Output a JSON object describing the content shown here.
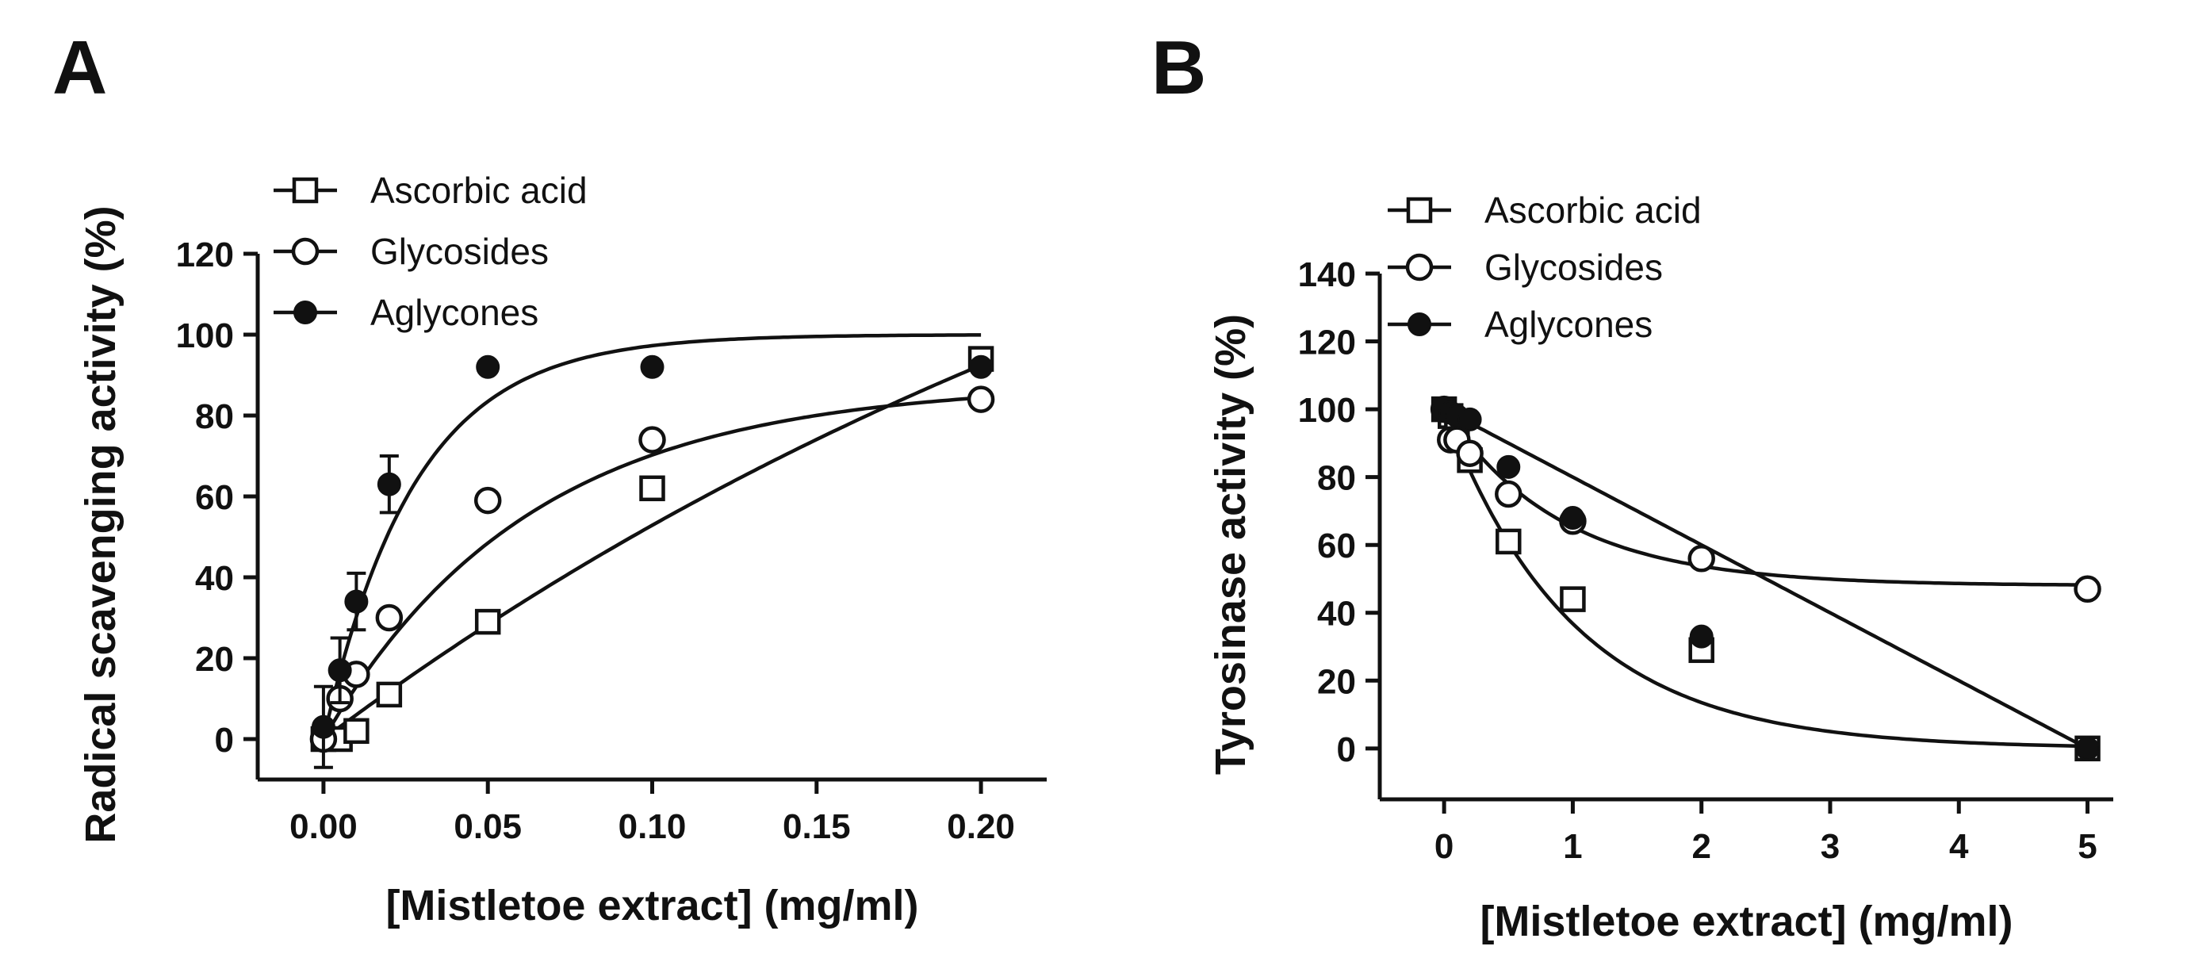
{
  "chart_data": [
    {
      "panel": "A",
      "type": "scatter",
      "xlabel": "[Mistletoe extract] (mg/ml)",
      "ylabel": "Radical scavenging activity (%)",
      "xlim": [
        -0.02,
        0.22
      ],
      "ylim": [
        -10,
        120
      ],
      "xticks": [
        "0.00",
        "0.05",
        "0.10",
        "0.15",
        "0.20"
      ],
      "yticks": [
        "0",
        "20",
        "40",
        "60",
        "80",
        "100",
        "120"
      ],
      "legend_position": "top-left",
      "series": [
        {
          "name": "Ascorbic acid",
          "marker": "open-square",
          "x": [
            0.0,
            0.005,
            0.01,
            0.02,
            0.05,
            0.1,
            0.2
          ],
          "y": [
            0,
            0,
            2,
            11,
            29,
            62,
            94
          ],
          "fit": {
            "ymax": 210,
            "k": 2.9
          }
        },
        {
          "name": "Glycosides",
          "marker": "open-circle",
          "x": [
            0.0,
            0.005,
            0.01,
            0.02,
            0.05,
            0.1,
            0.2
          ],
          "y": [
            0,
            10,
            16,
            30,
            59,
            74,
            84
          ],
          "fit": {
            "ymax": 88,
            "k": 16
          }
        },
        {
          "name": "Aglycones",
          "marker": "filled-circle",
          "x": [
            0.0,
            0.005,
            0.01,
            0.02,
            0.05,
            0.1,
            0.2
          ],
          "y": [
            3,
            17,
            34,
            63,
            92,
            92,
            92
          ],
          "err": [
            10,
            8,
            7,
            7,
            0,
            0,
            0
          ],
          "fit": {
            "ymax": 100,
            "k": 36
          }
        }
      ]
    },
    {
      "panel": "B",
      "type": "scatter",
      "xlabel": "[Mistletoe extract] (mg/ml)",
      "ylabel": "Tyrosinase activity (%)",
      "xlim": [
        -0.5,
        5.2
      ],
      "ylim": [
        -15,
        140
      ],
      "xticks": [
        "0",
        "1",
        "2",
        "3",
        "4",
        "5"
      ],
      "xtick_values": [
        0,
        1,
        2,
        3,
        4,
        5
      ],
      "yticks": [
        "0",
        "20",
        "40",
        "60",
        "80",
        "100",
        "120",
        "140"
      ],
      "legend_position": "top-left",
      "series": [
        {
          "name": "Ascorbic acid",
          "marker": "open-square",
          "x": [
            0.0,
            0.05,
            0.1,
            0.2,
            0.5,
            1.0,
            2.0,
            5.0
          ],
          "y": [
            100,
            98,
            96,
            85,
            61,
            44,
            29,
            0
          ],
          "fit": {
            "k": 1.0,
            "curve": "decay"
          }
        },
        {
          "name": "Glycosides",
          "marker": "open-circle",
          "x": [
            0.0,
            0.05,
            0.1,
            0.2,
            0.5,
            1.0,
            2.0,
            5.0
          ],
          "y": [
            100,
            91,
            91,
            87,
            75,
            67,
            56,
            47
          ],
          "fit": {
            "plateau": 48,
            "k": 1.1,
            "curve": "plateau"
          }
        },
        {
          "name": "Aglycones",
          "marker": "filled-circle",
          "x": [
            0.0,
            0.05,
            0.1,
            0.2,
            0.5,
            1.0,
            2.0,
            5.0
          ],
          "y": [
            100,
            99,
            98,
            97,
            83,
            68,
            33,
            0
          ],
          "fit": {
            "curve": "smooth"
          }
        }
      ]
    }
  ]
}
